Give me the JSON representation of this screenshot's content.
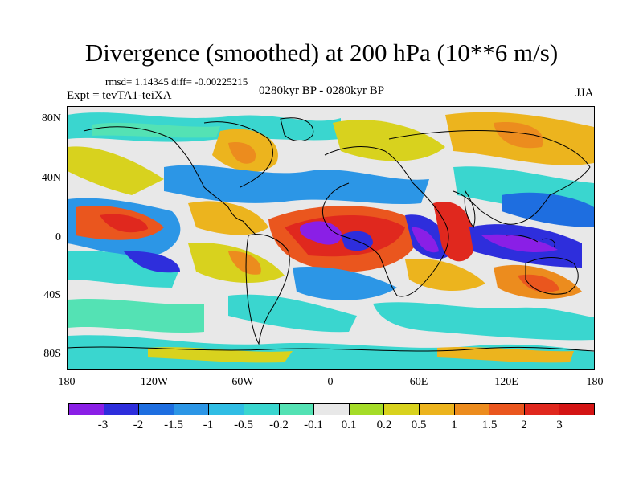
{
  "title": "Divergence (smoothed) at 200 hPa (10**6 m/s)",
  "stats": "rmsd= 1.14345 diff= -0.00225215",
  "experiment": "Expt = tevTA1-teiXA",
  "period": "0280kyr BP - 0280kyr BP",
  "season": "JJA",
  "y_axis_labels": [
    "80N",
    "40N",
    "0",
    "40S",
    "80S"
  ],
  "x_axis_labels": [
    "180",
    "120W",
    "60W",
    "0",
    "60E",
    "120E",
    "180"
  ],
  "colorbar": {
    "labels": [
      "-3",
      "-2",
      "-1.5",
      "-1",
      "-0.5",
      "-0.2",
      "-0.1",
      "0.1",
      "0.2",
      "0.5",
      "1",
      "1.5",
      "2",
      "3"
    ],
    "colors": [
      "#8a1fe6",
      "#2e2edc",
      "#1e6ee0",
      "#2c96e6",
      "#30bde4",
      "#3ad6cf",
      "#54e2b4",
      "#e8e8e8",
      "#a5dc28",
      "#d8d21e",
      "#ecb41e",
      "#ec8c1e",
      "#ea561e",
      "#e0281e",
      "#d41414"
    ]
  },
  "map_fields": {
    "background_color": "#e8e8e8",
    "coastline_color": "#000000"
  }
}
